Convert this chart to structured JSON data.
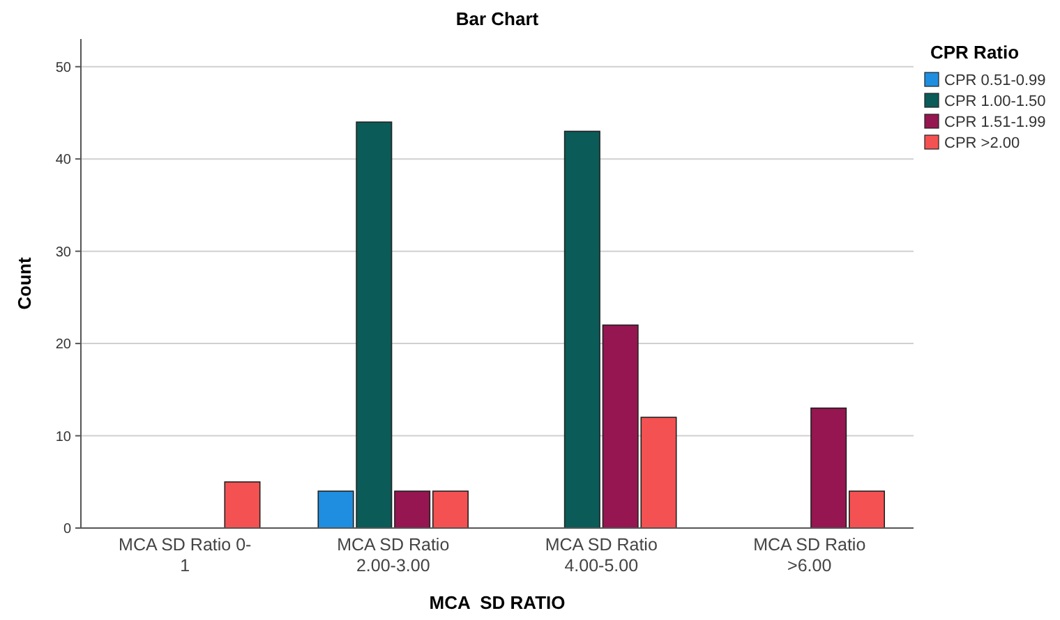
{
  "chart_data": {
    "type": "bar",
    "title": "Bar Chart",
    "xlabel": "MCA  SD RATIO",
    "ylabel": "Count",
    "legend_title": "CPR Ratio",
    "categories": [
      "MCA SD Ratio 0-1",
      "MCA SD Ratio 2.00-3.00",
      "MCA SD Ratio 4.00-5.00",
      "MCA SD Ratio >6.00"
    ],
    "series": [
      {
        "name": "CPR 0.51-0.99",
        "color": "#1f8ee0",
        "values": [
          null,
          4,
          null,
          null
        ]
      },
      {
        "name": "CPR 1.00-1.50",
        "color": "#0b5b58",
        "values": [
          null,
          44,
          43,
          null
        ]
      },
      {
        "name": "CPR 1.51-1.99",
        "color": "#951650",
        "values": [
          null,
          4,
          22,
          13
        ]
      },
      {
        "name": "CPR >2.00",
        "color": "#f45252",
        "values": [
          5,
          4,
          12,
          4
        ]
      }
    ],
    "ylim": [
      0,
      53
    ],
    "yticks": [
      0,
      10,
      20,
      30,
      40,
      50
    ],
    "grid": "y",
    "legend": "top right"
  }
}
